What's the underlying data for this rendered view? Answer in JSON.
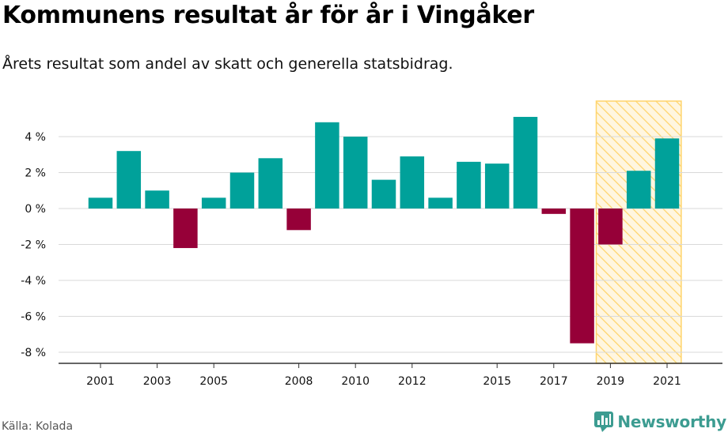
{
  "header": {
    "title": "Kommunens resultat år för år i Vingåker",
    "subtitle": "Årets resultat som andel av skatt och generella statsbidrag."
  },
  "footer": {
    "source": "Källa: Kolada",
    "brand": "Newsworthy"
  },
  "colors": {
    "positive": "#00a19a",
    "negative": "#960038",
    "highlight_fill": "#ffe6a8",
    "highlight_stroke": "#ffd46b",
    "grid": "#d9d9d9",
    "brand": "#3c9c91"
  },
  "chart_data": {
    "type": "bar",
    "title": "Kommunens resultat år för år i Vingåker",
    "subtitle": "Årets resultat som andel av skatt och generella statsbidrag.",
    "x": [
      2001,
      2002,
      2003,
      2004,
      2005,
      2006,
      2007,
      2008,
      2009,
      2010,
      2011,
      2012,
      2013,
      2014,
      2015,
      2016,
      2017,
      2018,
      2019,
      2020,
      2021
    ],
    "values": [
      0.6,
      3.2,
      1.0,
      -2.2,
      0.6,
      2.0,
      2.8,
      -1.2,
      4.8,
      4.0,
      1.6,
      2.9,
      0.6,
      2.6,
      2.5,
      5.1,
      -0.3,
      -7.5,
      -2.0,
      2.1,
      3.9
    ],
    "y_ticks": [
      4,
      2,
      0,
      -2,
      -4,
      -6,
      -8
    ],
    "y_tick_labels": [
      "4 %",
      "2 %",
      "0 %",
      "-2 %",
      "-4 %",
      "-6 %",
      "-8 %"
    ],
    "x_tick_labels": [
      "2001",
      "2003",
      "2005",
      "2008",
      "2010",
      "2012",
      "2015",
      "2017",
      "2019",
      "2021"
    ],
    "ylim": [
      -8.5,
      6
    ],
    "highlight_years": [
      2019,
      2020,
      2021
    ],
    "grid": "horizontal",
    "legend": "none"
  }
}
